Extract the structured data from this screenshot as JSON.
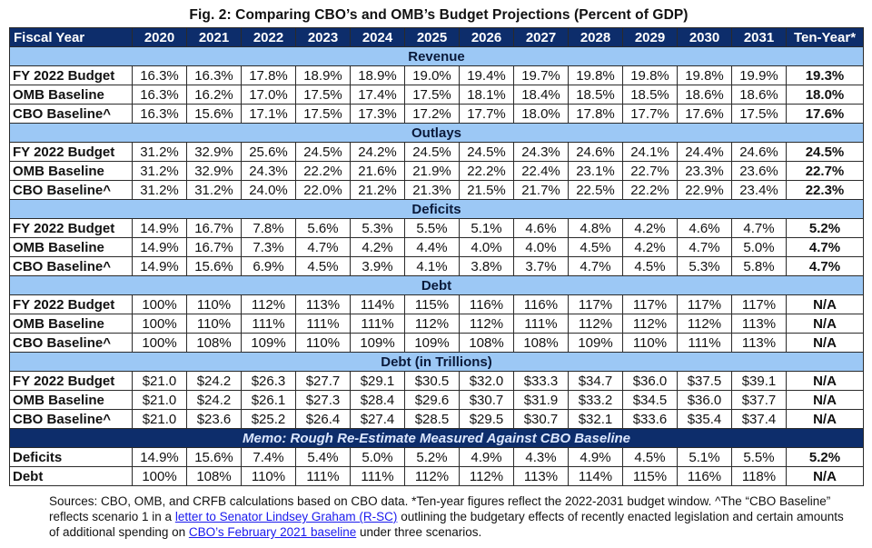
{
  "title": "Fig. 2: Comparing CBO’s and OMB’s Budget Projections (Percent of GDP)",
  "header": {
    "label": "Fiscal Year",
    "years": [
      "2020",
      "2021",
      "2022",
      "2023",
      "2024",
      "2025",
      "2026",
      "2027",
      "2028",
      "2029",
      "2030",
      "2031"
    ],
    "ten_year": "Ten-Year*"
  },
  "sections": [
    {
      "name": "Revenue",
      "rows": [
        {
          "label": "FY 2022 Budget",
          "values": [
            "16.3%",
            "16.3%",
            "17.8%",
            "18.9%",
            "18.9%",
            "19.0%",
            "19.4%",
            "19.7%",
            "19.8%",
            "19.8%",
            "19.8%",
            "19.9%"
          ],
          "ten_year": "19.3%"
        },
        {
          "label": "OMB Baseline",
          "values": [
            "16.3%",
            "16.2%",
            "17.0%",
            "17.5%",
            "17.4%",
            "17.5%",
            "18.1%",
            "18.4%",
            "18.5%",
            "18.5%",
            "18.6%",
            "18.6%"
          ],
          "ten_year": "18.0%"
        },
        {
          "label": "CBO Baseline^",
          "values": [
            "16.3%",
            "15.6%",
            "17.1%",
            "17.5%",
            "17.3%",
            "17.2%",
            "17.7%",
            "18.0%",
            "17.8%",
            "17.7%",
            "17.6%",
            "17.5%"
          ],
          "ten_year": "17.6%"
        }
      ]
    },
    {
      "name": "Outlays",
      "rows": [
        {
          "label": "FY 2022 Budget",
          "values": [
            "31.2%",
            "32.9%",
            "25.6%",
            "24.5%",
            "24.2%",
            "24.5%",
            "24.5%",
            "24.3%",
            "24.6%",
            "24.1%",
            "24.4%",
            "24.6%"
          ],
          "ten_year": "24.5%"
        },
        {
          "label": "OMB Baseline",
          "values": [
            "31.2%",
            "32.9%",
            "24.3%",
            "22.2%",
            "21.6%",
            "21.9%",
            "22.2%",
            "22.4%",
            "23.1%",
            "22.7%",
            "23.3%",
            "23.6%"
          ],
          "ten_year": "22.7%"
        },
        {
          "label": "CBO Baseline^",
          "values": [
            "31.2%",
            "31.2%",
            "24.0%",
            "22.0%",
            "21.2%",
            "21.3%",
            "21.5%",
            "21.7%",
            "22.5%",
            "22.2%",
            "22.9%",
            "23.4%"
          ],
          "ten_year": "22.3%"
        }
      ]
    },
    {
      "name": "Deficits",
      "rows": [
        {
          "label": "FY 2022 Budget",
          "values": [
            "14.9%",
            "16.7%",
            "7.8%",
            "5.6%",
            "5.3%",
            "5.5%",
            "5.1%",
            "4.6%",
            "4.8%",
            "4.2%",
            "4.6%",
            "4.7%"
          ],
          "ten_year": "5.2%"
        },
        {
          "label": "OMB Baseline",
          "values": [
            "14.9%",
            "16.7%",
            "7.3%",
            "4.7%",
            "4.2%",
            "4.4%",
            "4.0%",
            "4.0%",
            "4.5%",
            "4.2%",
            "4.7%",
            "5.0%"
          ],
          "ten_year": "4.7%"
        },
        {
          "label": "CBO Baseline^",
          "values": [
            "14.9%",
            "15.6%",
            "6.9%",
            "4.5%",
            "3.9%",
            "4.1%",
            "3.8%",
            "3.7%",
            "4.7%",
            "4.5%",
            "5.3%",
            "5.8%"
          ],
          "ten_year": "4.7%"
        }
      ]
    },
    {
      "name": "Debt",
      "rows": [
        {
          "label": "FY 2022 Budget",
          "values": [
            "100%",
            "110%",
            "112%",
            "113%",
            "114%",
            "115%",
            "116%",
            "116%",
            "117%",
            "117%",
            "117%",
            "117%"
          ],
          "ten_year": "N/A"
        },
        {
          "label": "OMB Baseline",
          "values": [
            "100%",
            "110%",
            "111%",
            "111%",
            "111%",
            "112%",
            "112%",
            "111%",
            "112%",
            "112%",
            "112%",
            "113%"
          ],
          "ten_year": "N/A"
        },
        {
          "label": "CBO Baseline^",
          "values": [
            "100%",
            "108%",
            "109%",
            "110%",
            "109%",
            "109%",
            "108%",
            "108%",
            "109%",
            "110%",
            "111%",
            "113%"
          ],
          "ten_year": "N/A"
        }
      ]
    },
    {
      "name": "Debt (in Trillions)",
      "rows": [
        {
          "label": "FY 2022 Budget",
          "values": [
            "$21.0",
            "$24.2",
            "$26.3",
            "$27.7",
            "$29.1",
            "$30.5",
            "$32.0",
            "$33.3",
            "$34.7",
            "$36.0",
            "$37.5",
            "$39.1"
          ],
          "ten_year": "N/A"
        },
        {
          "label": "OMB Baseline",
          "values": [
            "$21.0",
            "$24.2",
            "$26.1",
            "$27.3",
            "$28.4",
            "$29.6",
            "$30.7",
            "$31.9",
            "$33.2",
            "$34.5",
            "$36.0",
            "$37.7"
          ],
          "ten_year": "N/A"
        },
        {
          "label": "CBO Baseline^",
          "values": [
            "$21.0",
            "$23.6",
            "$25.2",
            "$26.4",
            "$27.4",
            "$28.5",
            "$29.5",
            "$30.7",
            "$32.1",
            "$33.6",
            "$35.4",
            "$37.4"
          ],
          "ten_year": "N/A"
        }
      ]
    }
  ],
  "memo": {
    "title": "Memo: Rough Re-Estimate Measured Against CBO Baseline",
    "rows": [
      {
        "label": "Deficits",
        "values": [
          "14.9%",
          "15.6%",
          "7.4%",
          "5.4%",
          "5.0%",
          "5.2%",
          "4.9%",
          "4.3%",
          "4.9%",
          "4.5%",
          "5.1%",
          "5.5%"
        ],
        "ten_year": "5.2%"
      },
      {
        "label": "Debt",
        "values": [
          "100%",
          "108%",
          "110%",
          "111%",
          "111%",
          "112%",
          "112%",
          "113%",
          "114%",
          "115%",
          "116%",
          "118%"
        ],
        "ten_year": "N/A"
      }
    ]
  },
  "sources": {
    "text_1": "Sources: CBO, OMB, and CRFB calculations based on CBO data. *Ten-year figures reflect the 2022-2031 budget window. ^The “CBO Baseline” reflects scenario 1 in a ",
    "link_1": "letter to Senator Lindsey Graham (R-SC)",
    "text_2": " outlining the budgetary effects of recently enacted legislation and certain amounts of additional spending on ",
    "link_2": "CBO’s February 2021 baseline",
    "text_3": " under three scenarios."
  },
  "colors": {
    "header_bg": "#0d2d6b",
    "section_band_bg": "#9cc8f5",
    "link": "#1a1aee"
  }
}
